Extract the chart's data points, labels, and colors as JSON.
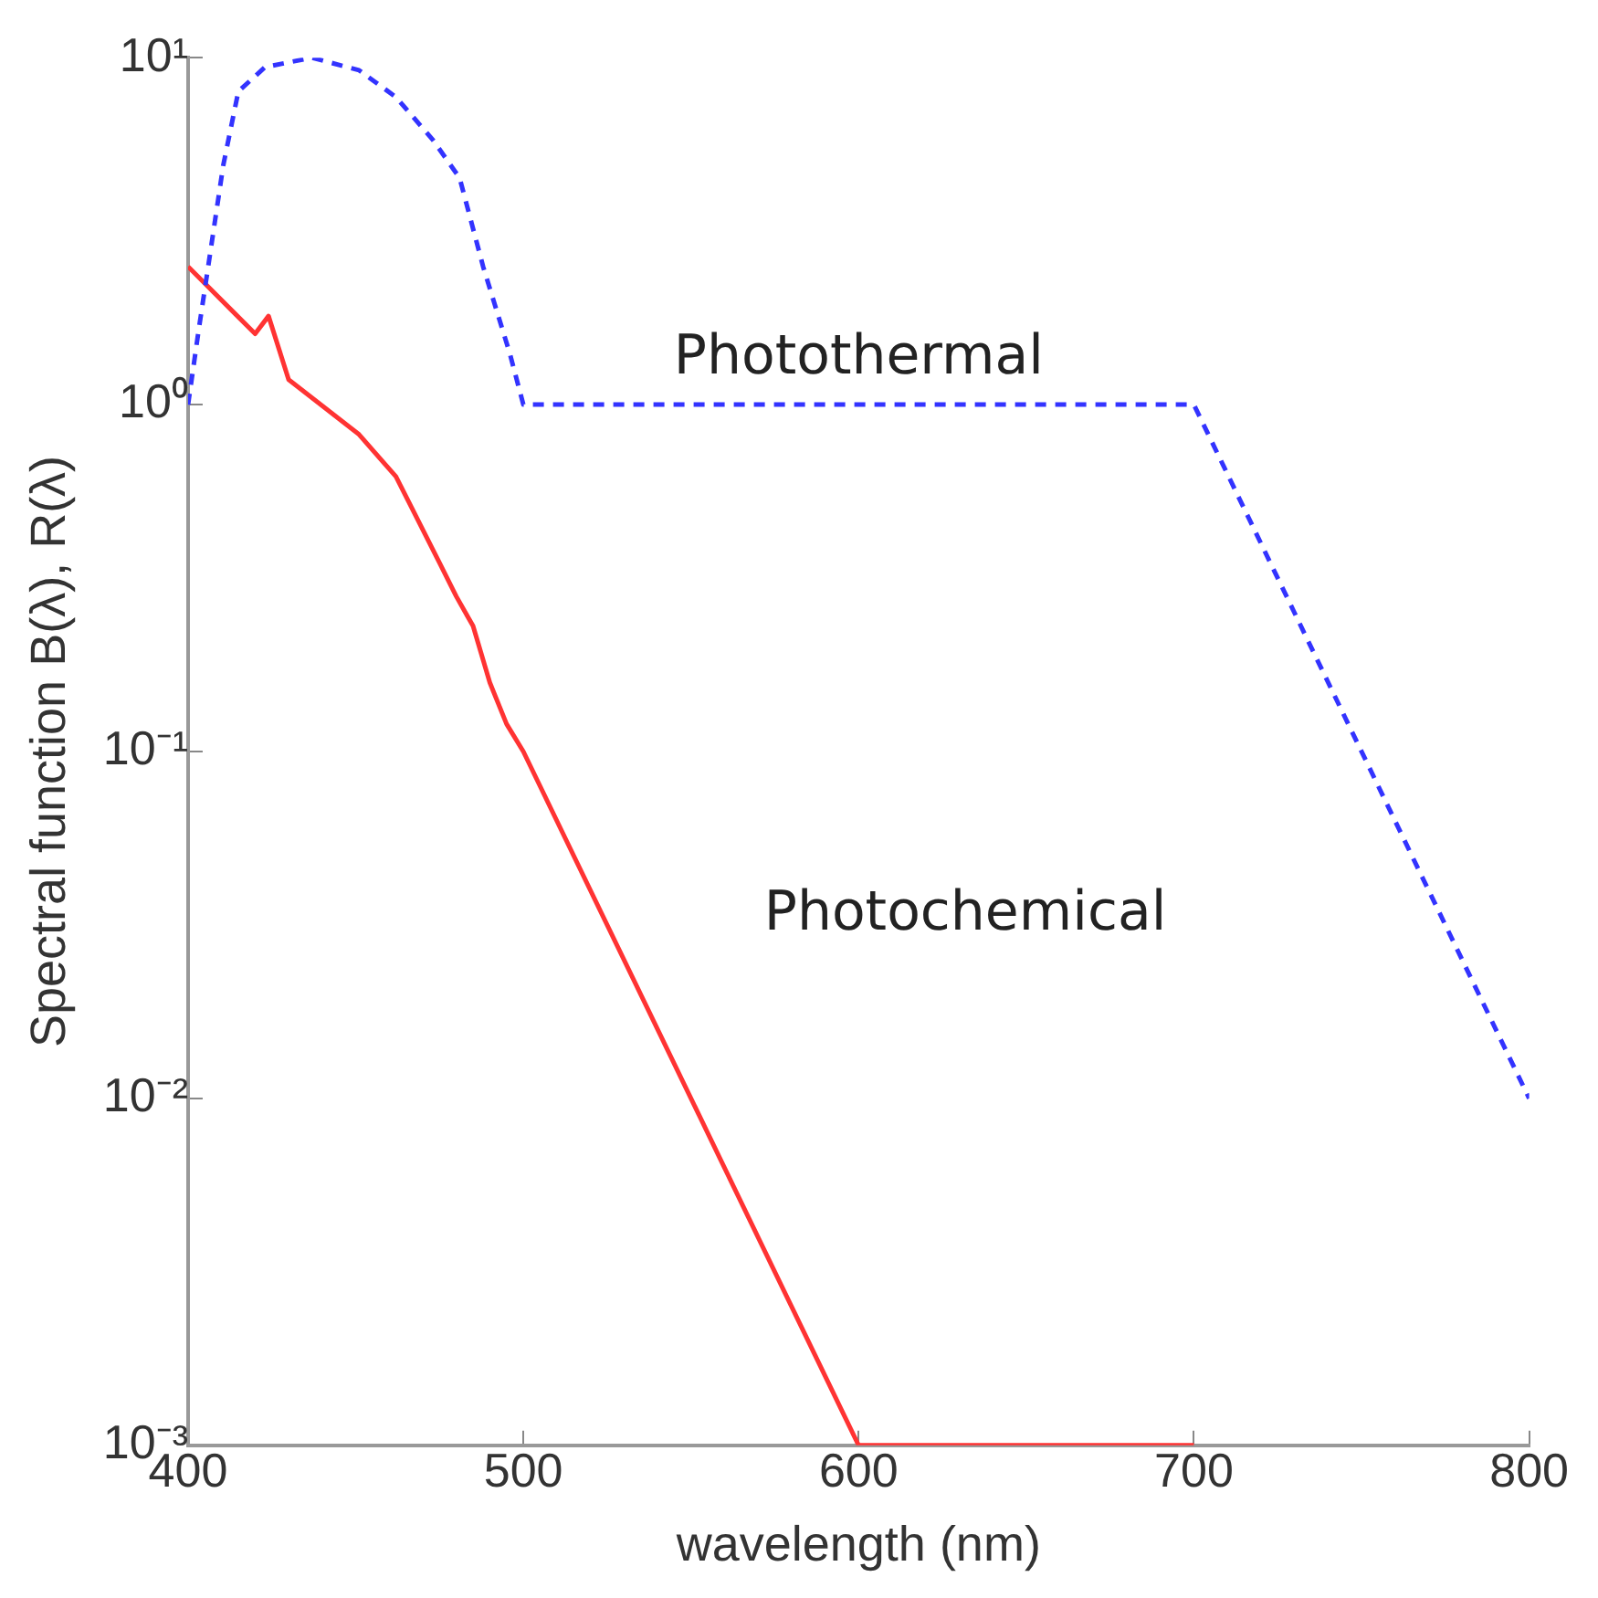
{
  "chart_data": {
    "type": "line",
    "xlabel": "wavelength (nm)",
    "ylabel": "Spectral function B(λ), R(λ)",
    "log": "y",
    "grid": false,
    "legend": false,
    "marker": "none",
    "xlim": [
      400,
      800
    ],
    "xticks": [
      400,
      500,
      600,
      700,
      800
    ],
    "ylim": [
      0.001,
      10
    ],
    "yticks": [
      {
        "value": 0.001,
        "label": "10⁻³"
      },
      {
        "value": 0.01,
        "label": "10⁻²"
      },
      {
        "value": 0.1,
        "label": "10⁻¹"
      },
      {
        "value": 1,
        "label": "10⁰"
      },
      {
        "value": 10,
        "label": "10¹"
      }
    ],
    "series": [
      {
        "name": "Photothermal",
        "color": "#3333ff",
        "line_style": "dashed",
        "x": [
          400,
          403,
          406,
          410.5,
          415,
          423,
          437,
          451,
          462,
          473,
          481,
          488,
          496,
          500,
          700,
          800
        ],
        "values": [
          1,
          1.6,
          2.5,
          4.9,
          8,
          9.4,
          10,
          9.2,
          7.7,
          5.8,
          4.5,
          2.5,
          1.4,
          1,
          1,
          0.01
        ]
      },
      {
        "name": "Photochemical",
        "color": "#ff3333",
        "line_style": "solid",
        "x": [
          400,
          420,
          424,
          430,
          451,
          462,
          475,
          480,
          485,
          490,
          495,
          500,
          600,
          700
        ],
        "values": [
          2.5,
          1.6,
          1.8,
          1.18,
          0.82,
          0.62,
          0.35,
          0.28,
          0.23,
          0.158,
          0.12,
          0.1,
          0.001,
          0.001
        ]
      }
    ]
  }
}
